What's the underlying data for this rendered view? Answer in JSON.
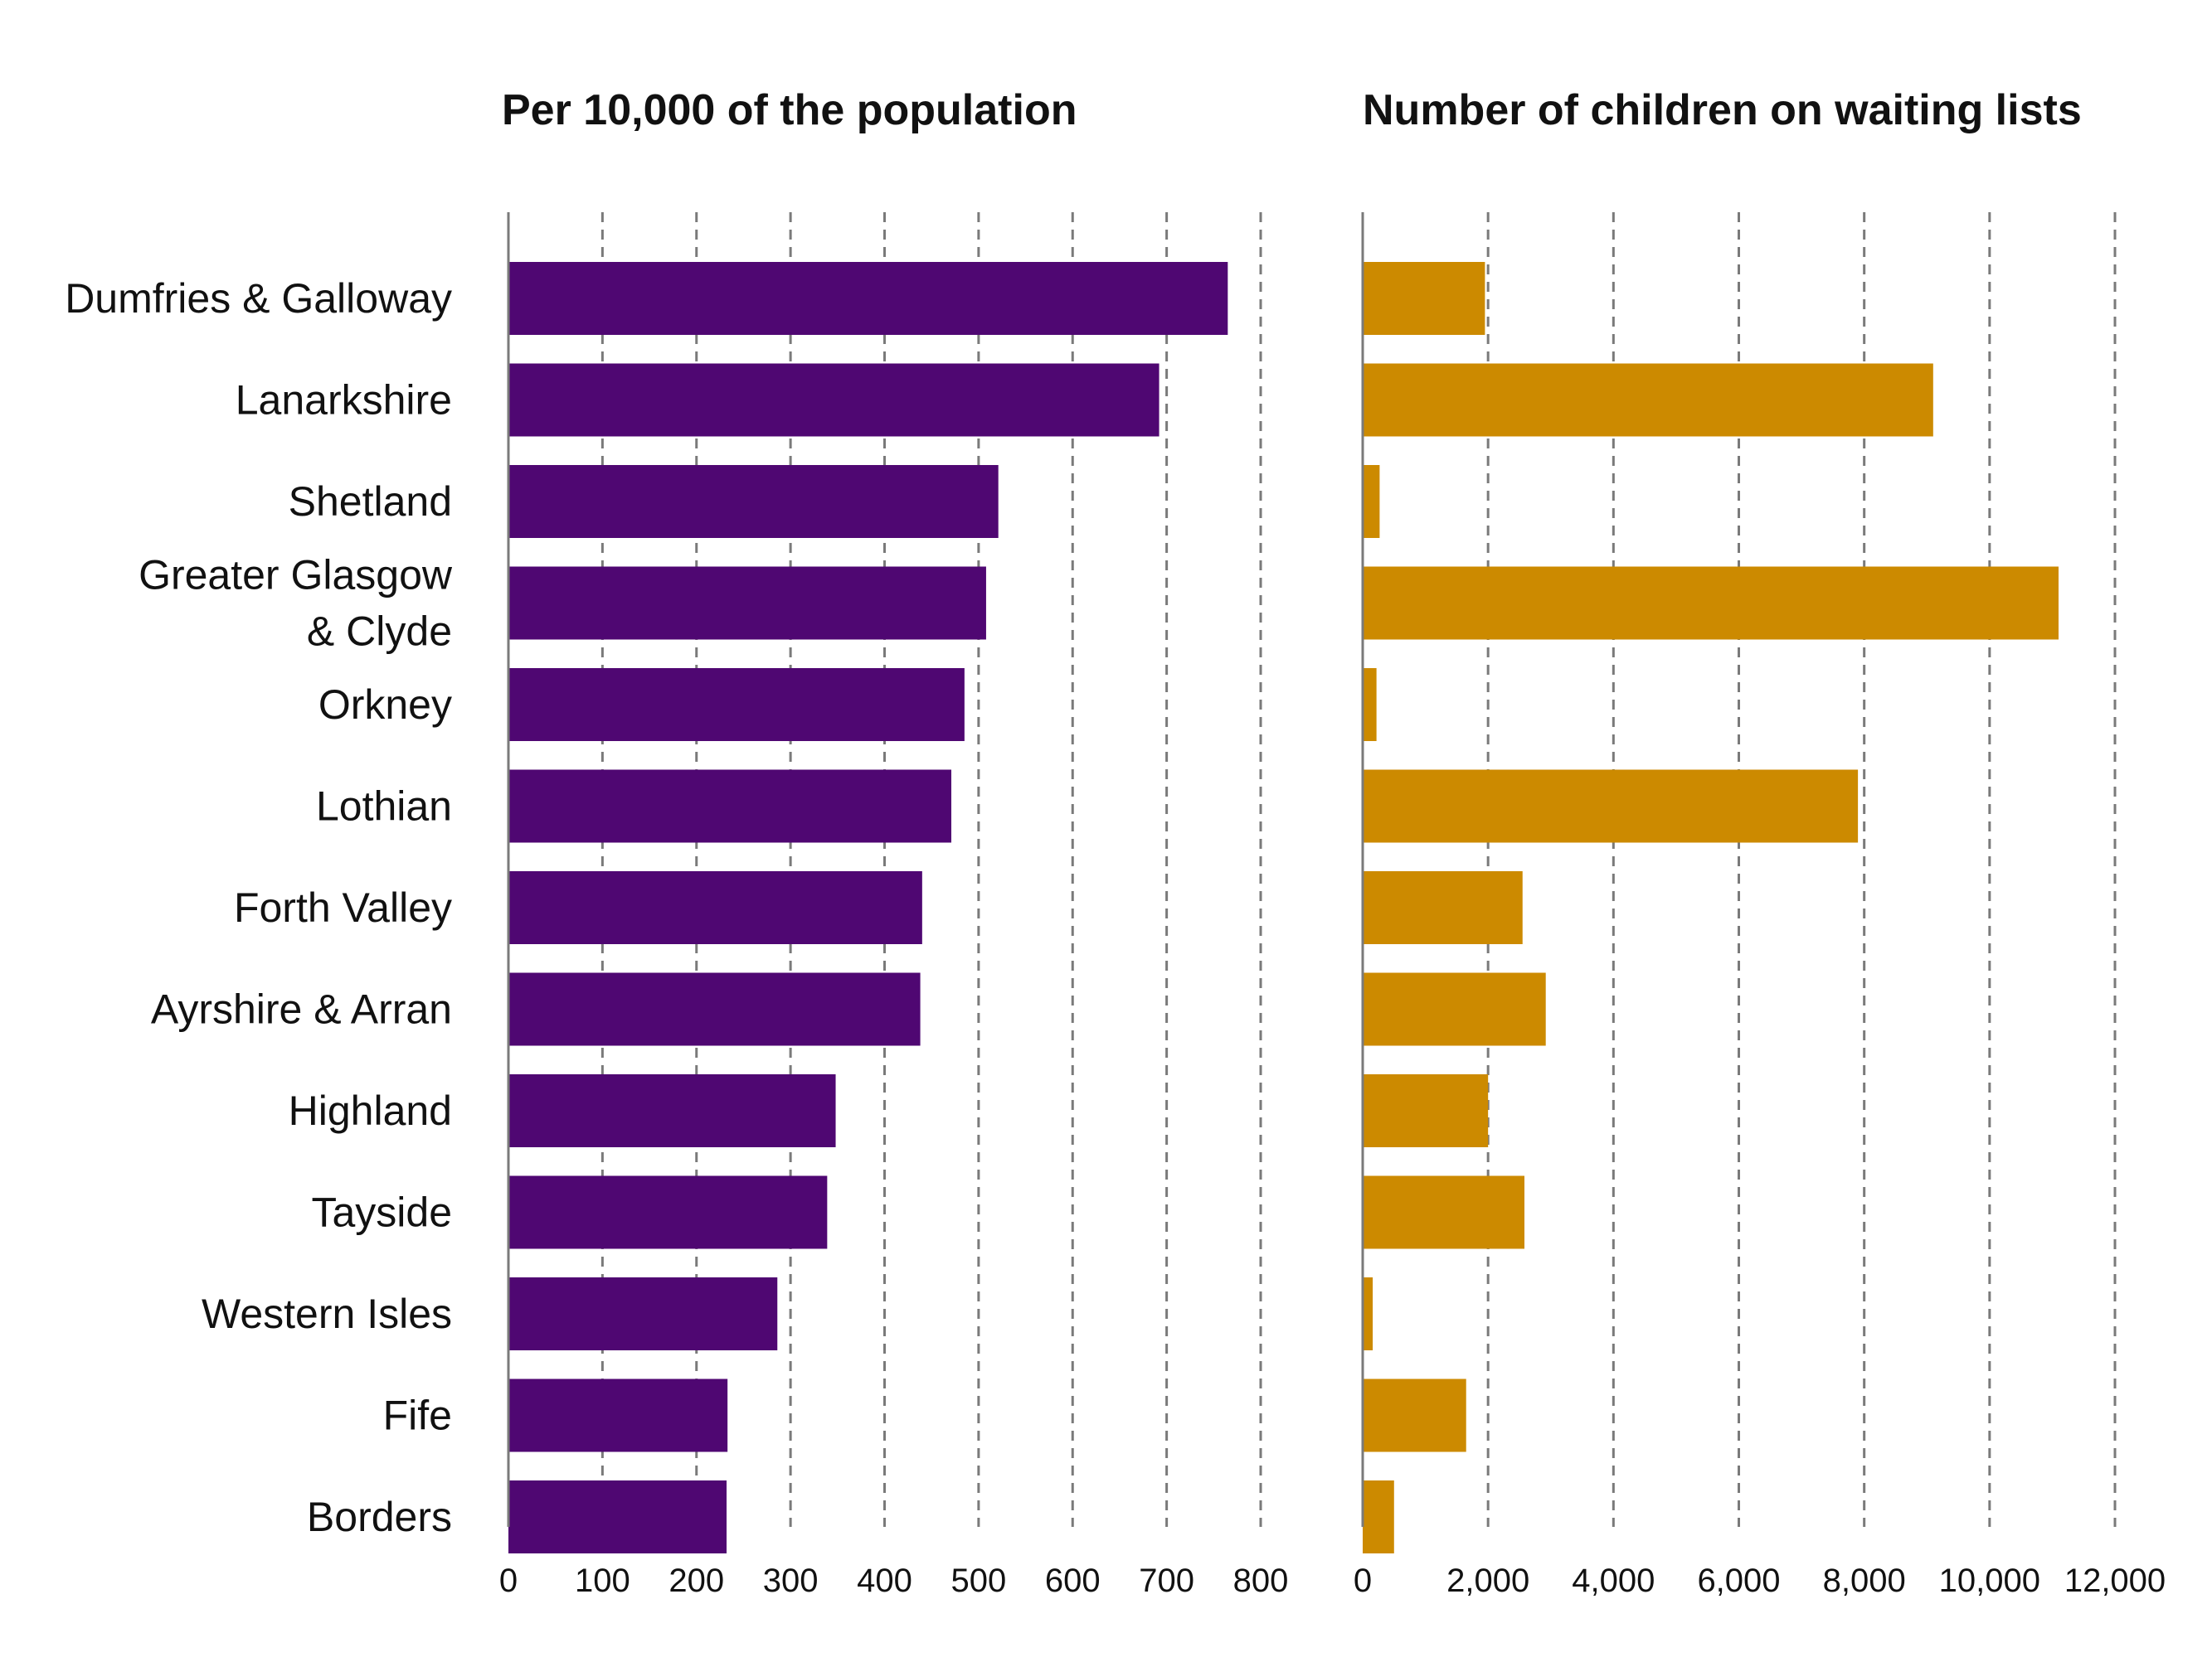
{
  "chart_data": [
    {
      "type": "bar",
      "orientation": "horizontal",
      "title": "Per 10,000 of the population",
      "categories": [
        "Dumfries & Galloway",
        "Lanarkshire",
        "Shetland",
        "Greater Glasgow & Clyde",
        "Orkney",
        "Lothian",
        "Forth Valley",
        "Ayrshire & Arran",
        "Highland",
        "Tayside",
        "Western Isles",
        "Fife",
        "Borders"
      ],
      "category_lines": [
        [
          "Dumfries & Galloway"
        ],
        [
          "Lanarkshire"
        ],
        [
          "Shetland"
        ],
        [
          "Greater Glasgow",
          "& Clyde"
        ],
        [
          "Orkney"
        ],
        [
          "Lothian"
        ],
        [
          "Forth Valley"
        ],
        [
          "Ayrshire & Arran"
        ],
        [
          "Highland"
        ],
        [
          "Tayside"
        ],
        [
          "Western Isles"
        ],
        [
          "Fife"
        ],
        [
          "Borders"
        ]
      ],
      "values": [
        765,
        692,
        521,
        508,
        485,
        471,
        440,
        438,
        348,
        339,
        286,
        233,
        232
      ],
      "xlim": [
        0,
        800
      ],
      "ticks": [
        0,
        100,
        200,
        300,
        400,
        500,
        600,
        700,
        800
      ],
      "tick_labels": [
        "0",
        "100",
        "200",
        "300",
        "400",
        "500",
        "600",
        "700",
        "800"
      ],
      "color": "#4f0772",
      "grid": "dashed vertical"
    },
    {
      "type": "bar",
      "orientation": "horizontal",
      "title": "Number of children on waiting lists",
      "categories": [
        "Dumfries & Galloway",
        "Lanarkshire",
        "Shetland",
        "Greater Glasgow & Clyde",
        "Orkney",
        "Lothian",
        "Forth Valley",
        "Ayrshire & Arran",
        "Highland",
        "Tayside",
        "Western Isles",
        "Fife",
        "Borders"
      ],
      "values": [
        1950,
        9100,
        270,
        11100,
        220,
        7900,
        2550,
        2920,
        2000,
        2580,
        160,
        1650,
        500
      ],
      "xlim": [
        0,
        12000
      ],
      "ticks": [
        0,
        2000,
        4000,
        6000,
        8000,
        10000,
        12000
      ],
      "tick_labels": [
        "0",
        "2,000",
        "4,000",
        "6,000",
        "8,000",
        "10,000",
        "12,000"
      ],
      "color": "#cc8a00",
      "grid": "dashed vertical"
    }
  ]
}
